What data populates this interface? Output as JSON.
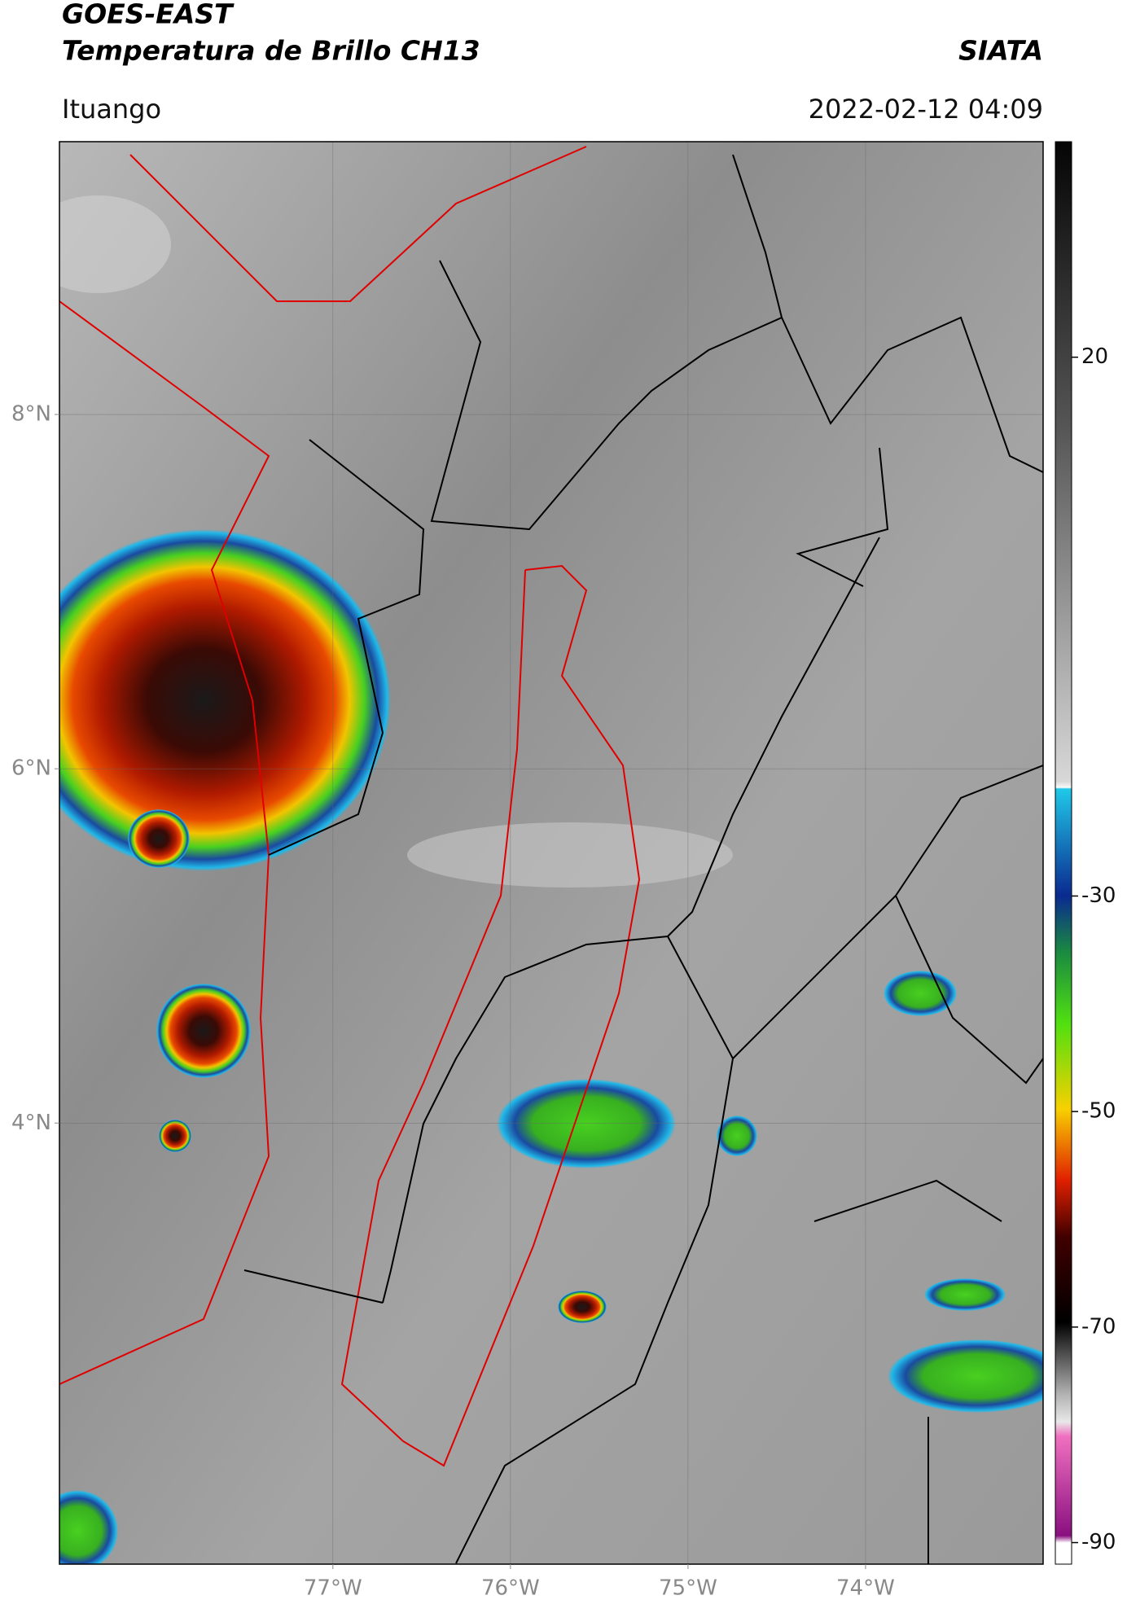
{
  "header": {
    "title": "GOES-EAST",
    "subtitle": "Temperatura de Brillo CH13",
    "source": "SIATA",
    "location": "Ituango",
    "datetime": "2022-02-12 04:09"
  },
  "map": {
    "xlim": [
      -78.54,
      -73.0
    ],
    "ylim": [
      1.51,
      9.54
    ],
    "xticks": [
      {
        "value": -77,
        "label": "77°W"
      },
      {
        "value": -76,
        "label": "76°W"
      },
      {
        "value": -75,
        "label": "75°W"
      },
      {
        "value": -74,
        "label": "74°W"
      }
    ],
    "yticks": [
      {
        "value": 8,
        "label": "8°N"
      },
      {
        "value": 6,
        "label": "6°N"
      },
      {
        "value": 4,
        "label": "4°N"
      }
    ],
    "grid": true
  },
  "colorbar": {
    "lim": [
      -92,
      40
    ],
    "ticks": [
      20,
      -30,
      -50,
      -70,
      -90
    ]
  }
}
